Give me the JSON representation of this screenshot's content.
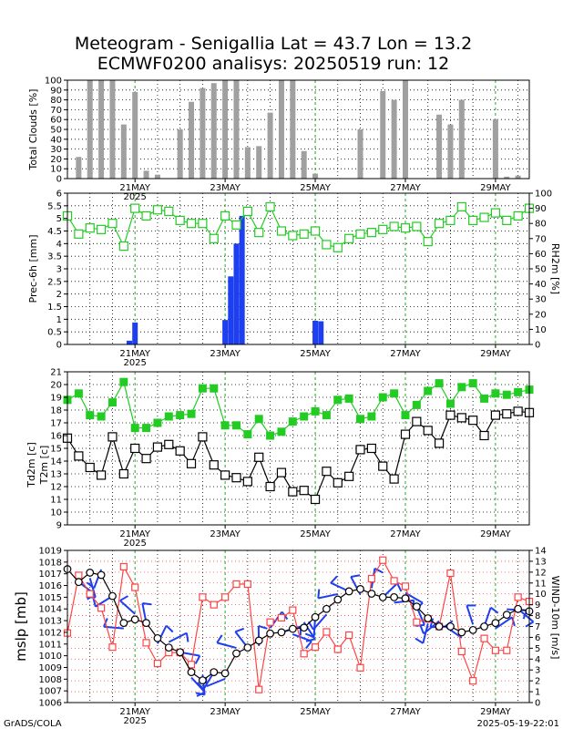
{
  "title": {
    "line1": "Meteogram - Senigallia Lat = 43.7 Lon = 13.2",
    "line2": "ECMWF0200 analisys: 20250519 run: 12"
  },
  "footer": {
    "left": "GrADS/COLA",
    "right": "2025-05-19-22:01"
  },
  "colors": {
    "clouds": "#a0a0a0",
    "precip": "#1e3ff0",
    "rh": "#22cc22",
    "t2m": "#22cc22",
    "td2m": "#000000",
    "mslp": "#000000",
    "wind": "#ff4444",
    "barbs": "#1e3ff0"
  },
  "x_axis": {
    "date_ticks": [
      "21MAY",
      "23MAY",
      "25MAY",
      "27MAY",
      "29MAY"
    ],
    "tick_hours": [
      36,
      84,
      132,
      180,
      228
    ],
    "year_label": "2025",
    "range_hours": [
      0,
      246
    ],
    "step_hours": 6
  },
  "chart_data": [
    {
      "id": "clouds",
      "type": "bar",
      "ylabel": "Total Clouds [%]",
      "ylim": [
        0,
        100
      ],
      "yticks": [
        0,
        10,
        20,
        30,
        40,
        50,
        60,
        70,
        80,
        90,
        100
      ],
      "x_hours": [
        6,
        12,
        18,
        24,
        30,
        36,
        42,
        48,
        54,
        60,
        66,
        72,
        78,
        84,
        90,
        96,
        102,
        108,
        114,
        120,
        126,
        132,
        138,
        144,
        150,
        156,
        162,
        168,
        174,
        180,
        186,
        192,
        198,
        204,
        210,
        216,
        222,
        228,
        234,
        240
      ],
      "values": [
        22,
        100,
        100,
        100,
        55,
        88,
        8,
        4,
        0,
        50,
        78,
        92,
        97,
        100,
        100,
        32,
        33,
        67,
        100,
        100,
        28,
        5,
        0,
        0,
        0,
        50,
        0,
        89,
        80,
        100,
        0,
        0,
        65,
        55,
        80,
        0,
        0,
        60,
        2,
        3
      ]
    },
    {
      "id": "precip_rh",
      "type": "bar+line",
      "ylabel": "Prec-6h [mm]",
      "ylabel_right": "RH2m [%]",
      "ylim": [
        0,
        6
      ],
      "yticks": [
        "0",
        "0.5",
        "1",
        "1.5",
        "2",
        "2.5",
        "3",
        "3.5",
        "4",
        "4.5",
        "5",
        "5.5",
        "6"
      ],
      "ylim_right": [
        0,
        100
      ],
      "yticks_right": [
        0,
        10,
        20,
        30,
        40,
        50,
        60,
        70,
        80,
        90,
        100
      ],
      "precip": {
        "x_hours": [
          33,
          36,
          84,
          87,
          90,
          93,
          132,
          135
        ],
        "values": [
          0.15,
          0.87,
          0.97,
          2.7,
          4.0,
          5.1,
          0.94,
          0.92
        ]
      },
      "rh": {
        "x_hours": [
          0,
          6,
          12,
          18,
          24,
          30,
          36,
          42,
          48,
          54,
          60,
          66,
          72,
          78,
          84,
          90,
          96,
          102,
          108,
          114,
          120,
          126,
          132,
          138,
          144,
          150,
          156,
          162,
          168,
          174,
          180,
          186,
          192,
          198,
          204,
          210,
          216,
          222,
          228,
          234,
          240,
          246
        ],
        "values": [
          85,
          73,
          77,
          76,
          80,
          65,
          90,
          85,
          89,
          88,
          82,
          80,
          80,
          70,
          85,
          79,
          88,
          74,
          91,
          75,
          72,
          73,
          75,
          66,
          64,
          70,
          73,
          74,
          76,
          78,
          77,
          78,
          68,
          80,
          82,
          91,
          82,
          84,
          87,
          82,
          85,
          90
        ]
      }
    },
    {
      "id": "temperature",
      "type": "line",
      "ylabel": "Td2m [c]",
      "ylabel2": "T2m [c]",
      "ylim": [
        9,
        21
      ],
      "yticks": [
        9,
        10,
        11,
        12,
        13,
        14,
        15,
        16,
        17,
        18,
        19,
        20,
        21
      ],
      "t2m": {
        "x_hours": [
          0,
          6,
          12,
          18,
          24,
          30,
          36,
          42,
          48,
          54,
          60,
          66,
          72,
          78,
          84,
          90,
          96,
          102,
          108,
          114,
          120,
          126,
          132,
          138,
          144,
          150,
          156,
          162,
          168,
          174,
          180,
          186,
          192,
          198,
          204,
          210,
          216,
          222,
          228,
          234,
          240,
          246
        ],
        "values": [
          18.8,
          19.3,
          17.6,
          17.5,
          18.6,
          20.2,
          16.6,
          16.6,
          17.0,
          17.5,
          17.6,
          17.7,
          19.7,
          19.7,
          16.8,
          16.8,
          16.1,
          17.3,
          16.0,
          16.3,
          17.1,
          17.5,
          17.9,
          17.6,
          18.8,
          18.9,
          17.3,
          17.5,
          19.0,
          19.3,
          17.6,
          18.4,
          19.5,
          20.1,
          18.5,
          19.8,
          20.1,
          18.9,
          19.3,
          19.2,
          19.4,
          19.6
        ]
      },
      "td2m": {
        "x_hours": [
          0,
          6,
          12,
          18,
          24,
          30,
          36,
          42,
          48,
          54,
          60,
          66,
          72,
          78,
          84,
          90,
          96,
          102,
          108,
          114,
          120,
          126,
          132,
          138,
          144,
          150,
          156,
          162,
          168,
          174,
          180,
          186,
          192,
          198,
          204,
          210,
          216,
          222,
          228,
          234,
          240,
          246
        ],
        "values": [
          15.8,
          14.4,
          13.5,
          12.9,
          15.9,
          13.0,
          15.0,
          14.2,
          15.1,
          15.3,
          14.8,
          13.8,
          15.9,
          13.7,
          12.9,
          12.7,
          12.4,
          14.3,
          12.0,
          13.1,
          11.6,
          11.7,
          11.0,
          13.2,
          12.3,
          12.8,
          14.9,
          15.0,
          13.6,
          12.6,
          16.1,
          17.1,
          16.4,
          15.4,
          17.6,
          17.4,
          17.2,
          16.0,
          17.6,
          17.7,
          17.9,
          17.8
        ]
      }
    },
    {
      "id": "mslp_wind",
      "type": "line",
      "ylabel": "mslp [mb]",
      "ylabel_right": "WIND-10m [m/s]",
      "ylim": [
        1006,
        1019
      ],
      "yticks": [
        1006,
        1007,
        1008,
        1009,
        1010,
        1011,
        1012,
        1013,
        1014,
        1015,
        1016,
        1017,
        1018,
        1019
      ],
      "ylim_right": [
        0,
        14
      ],
      "yticks_right": [
        0,
        1,
        2,
        3,
        4,
        5,
        6,
        7,
        8,
        9,
        10,
        11,
        12,
        13,
        14
      ],
      "mslp": {
        "x_hours": [
          0,
          6,
          12,
          18,
          24,
          30,
          36,
          42,
          48,
          54,
          60,
          66,
          72,
          78,
          84,
          90,
          96,
          102,
          108,
          114,
          120,
          126,
          132,
          138,
          144,
          150,
          156,
          162,
          168,
          174,
          180,
          186,
          192,
          198,
          204,
          210,
          216,
          222,
          228,
          234,
          240,
          246
        ],
        "values": [
          1017.4,
          1016.3,
          1017.1,
          1016.9,
          1015.1,
          1012.8,
          1013.1,
          1012.8,
          1011.5,
          1010.7,
          1010.3,
          1008.6,
          1007.9,
          1008.6,
          1008.5,
          1010.2,
          1010.7,
          1011.3,
          1011.9,
          1012.0,
          1012.3,
          1012.4,
          1013.3,
          1014.0,
          1014.8,
          1015.5,
          1015.7,
          1015.3,
          1015.0,
          1015.0,
          1014.9,
          1014.2,
          1013.2,
          1012.5,
          1012.5,
          1012.0,
          1012.2,
          1012.5,
          1012.8,
          1013.5,
          1014.0,
          1013.8
        ]
      },
      "wind": {
        "x_hours": [
          0,
          6,
          12,
          18,
          24,
          30,
          36,
          42,
          48,
          54,
          60,
          66,
          72,
          78,
          84,
          90,
          96,
          102,
          108,
          114,
          120,
          126,
          132,
          138,
          144,
          150,
          156,
          162,
          168,
          174,
          180,
          186,
          192,
          198,
          204,
          210,
          216,
          222,
          228,
          234,
          240,
          246
        ],
        "values": [
          6.4,
          11.7,
          10.0,
          8.7,
          5.1,
          12.5,
          10.6,
          5.5,
          3.6,
          4.6,
          4.6,
          3.5,
          9.7,
          9.0,
          9.7,
          10.9,
          10.9,
          1.2,
          7.4,
          7.8,
          8.5,
          4.5,
          5.1,
          6.5,
          4.9,
          6.2,
          3.2,
          11.4,
          13.1,
          11.2,
          10.7,
          7.4,
          7.7,
          7.0,
          11.9,
          4.7,
          2.0,
          5.9,
          4.8,
          4.8,
          9.7,
          9.3
        ]
      }
    }
  ]
}
